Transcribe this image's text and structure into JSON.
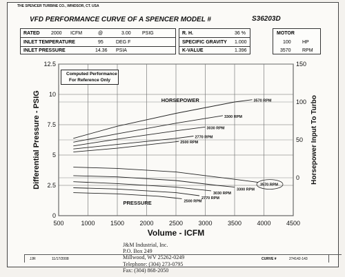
{
  "header": {
    "company": "THE SPENCER TURBINE CO., WINDSOR, CT. USA",
    "title": "VFD PERFORMANCE CURVE OF A SPENCER MODEL #",
    "model": "S36203D"
  },
  "specs_left": [
    {
      "label": "RATED",
      "value": "2000",
      "unit": "ICFM",
      "at": "@",
      "value2": "3.00",
      "unit2": "PSIG"
    },
    {
      "label": "INLET TEMPERATURE",
      "value": "95",
      "unit": "DEG F"
    },
    {
      "label": "INLET PRESSURE",
      "value": "14.36",
      "unit": "PSIA"
    }
  ],
  "specs_mid": [
    {
      "label": "R. H.",
      "value": "36 %"
    },
    {
      "label": "SPECIFIC GRAVITY",
      "value": "1.000"
    },
    {
      "label": "K-VALUE",
      "value": "1.396"
    }
  ],
  "motor": {
    "label": "MOTOR",
    "hp": "100",
    "hp_unit": "HP",
    "rpm": "3570",
    "rpm_unit": "RPM"
  },
  "note": {
    "line1": "Computed Performance",
    "line2": "For Reference Only"
  },
  "chart_data": {
    "type": "line",
    "xlabel": "Volume - ICFM",
    "ylabel_left": "Differential Pressure - PSIG",
    "ylabel_right": "Horsepower Input To Turbo",
    "xlim": [
      500,
      4500
    ],
    "ylim_left": [
      0,
      12.5
    ],
    "ylim_right": [
      -50,
      150
    ],
    "x_ticks": [
      500,
      1000,
      1500,
      2000,
      2500,
      3000,
      3500,
      4000,
      4500
    ],
    "y_left_ticks": [
      0,
      2.5,
      5,
      7.5,
      10,
      12.5
    ],
    "y_right_ticks": [
      0,
      50,
      100,
      150
    ],
    "grid": true,
    "group_labels": {
      "horsepower": "HORSEPOWER",
      "pressure": "PRESSURE"
    },
    "horsepower_series": [
      {
        "name": "3570 RPM",
        "x": [
          750,
          1500,
          2500,
          3500,
          3800
        ],
        "y": [
          52,
          68,
          85,
          100,
          103
        ]
      },
      {
        "name": "3300 RPM",
        "x": [
          750,
          1500,
          2500,
          3300
        ],
        "y": [
          47,
          58,
          72,
          82
        ]
      },
      {
        "name": "3030 RPM",
        "x": [
          750,
          1500,
          2500,
          3000
        ],
        "y": [
          42,
          51,
          62,
          67
        ]
      },
      {
        "name": "2770 RPM",
        "x": [
          750,
          1500,
          2500,
          2800
        ],
        "y": [
          38,
          44,
          52,
          55
        ]
      },
      {
        "name": "2500 RPM",
        "x": [
          750,
          1500,
          2300,
          2550
        ],
        "y": [
          34,
          39,
          46,
          48
        ]
      }
    ],
    "pressure_series": [
      {
        "name": "3570 RPM",
        "x": [
          750,
          1500,
          2500,
          3500,
          3900
        ],
        "y": [
          4.0,
          3.9,
          3.6,
          3.0,
          2.75
        ]
      },
      {
        "name": "3300 RPM",
        "x": [
          750,
          1500,
          2500,
          3200,
          3500
        ],
        "y": [
          3.3,
          3.2,
          2.9,
          2.5,
          2.35
        ]
      },
      {
        "name": "3030 RPM",
        "x": [
          750,
          1500,
          2500,
          3100
        ],
        "y": [
          2.8,
          2.65,
          2.35,
          2.05
        ]
      },
      {
        "name": "2770 RPM",
        "x": [
          750,
          1500,
          2500,
          2900
        ],
        "y": [
          2.3,
          2.2,
          1.9,
          1.65
        ]
      },
      {
        "name": "2500 RPM",
        "x": [
          750,
          1500,
          2200,
          2600
        ],
        "y": [
          1.9,
          1.8,
          1.6,
          1.4
        ]
      }
    ]
  },
  "footer": {
    "left_code": "JJR",
    "date": "11/17/2008",
    "curve_label": "CURVE #",
    "curve_no": "274142-143"
  },
  "address": {
    "line1": "J&M Industrial, Inc.",
    "line2": "P.O. Box 249",
    "line3": "Millwood, WV  25262-0249",
    "line4": "Telephone: (304) 273-0795",
    "line5": "Fax:  (304) 868-2050"
  }
}
